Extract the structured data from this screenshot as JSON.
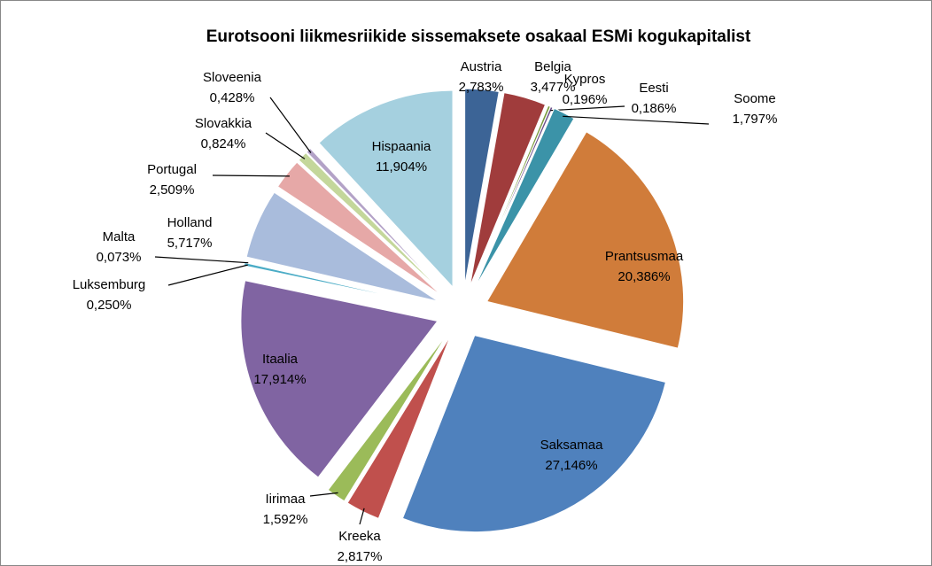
{
  "chart_data": {
    "type": "pie",
    "title": "Eurotsooni liikmesriikide sissemaksete osakaal ESMi kogukapitalist",
    "categories": [
      "Austria",
      "Belgia",
      "Kypros",
      "Eesti",
      "Soome",
      "Prantsusmaa",
      "Saksamaa",
      "Kreeka",
      "Iirimaa",
      "Itaalia",
      "Luksemburg",
      "Malta",
      "Holland",
      "Portugal",
      "Slovakkia",
      "Sloveenia",
      "Hispaania"
    ],
    "values": [
      2.783,
      3.477,
      0.196,
      0.186,
      1.797,
      20.386,
      27.146,
      2.817,
      1.592,
      17.914,
      0.25,
      0.073,
      5.717,
      2.509,
      0.824,
      0.428,
      11.904
    ],
    "value_labels": [
      "2,783%",
      "3,477%",
      "0,196%",
      "0,186%",
      "1,797%",
      "20,386%",
      "27,146%",
      "2,817%",
      "1,592%",
      "17,914%",
      "0,250%",
      "0,073%",
      "5,717%",
      "2,509%",
      "0,824%",
      "0,428%",
      "11,904%"
    ],
    "colors": [
      "#3c6496",
      "#a03c3c",
      "#7a9a3c",
      "#6a4e8a",
      "#3b93a8",
      "#d07c3a",
      "#4f81bd",
      "#c0504d",
      "#9bbb59",
      "#8064a2",
      "#4bacc6",
      "#f79646",
      "#a9bcdc",
      "#e6a8a7",
      "#c4d79b",
      "#b3a2c7",
      "#a5d0df"
    ]
  }
}
